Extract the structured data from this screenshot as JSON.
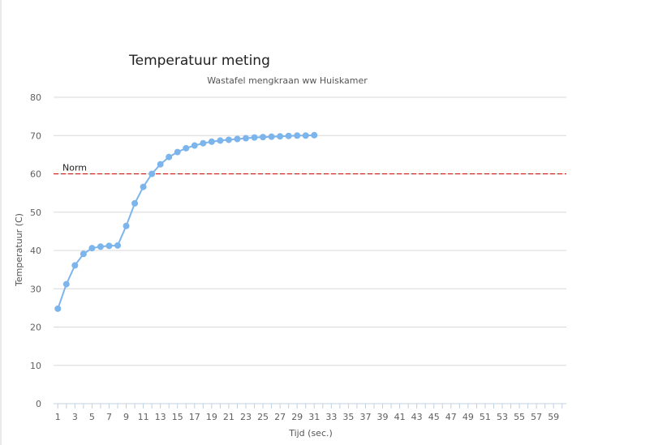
{
  "chart_data": {
    "type": "line",
    "title": "Temperatuur meting",
    "subtitle": "Wastafel mengkraan ww Huiskamer",
    "xlabel": "Tijd (sec.)",
    "ylabel": "Temperatuur (C)",
    "ylim": [
      0,
      80
    ],
    "yticks": [
      0,
      10,
      20,
      30,
      40,
      50,
      60,
      70,
      80
    ],
    "xlim": [
      1,
      60
    ],
    "xticks": [
      1,
      3,
      5,
      7,
      9,
      11,
      13,
      15,
      17,
      19,
      21,
      23,
      25,
      27,
      29,
      31,
      33,
      35,
      37,
      39,
      41,
      43,
      45,
      47,
      49,
      51,
      53,
      55,
      57,
      59
    ],
    "grid": true,
    "series": [
      {
        "name": "",
        "color": "#7cb5ec",
        "x": [
          1,
          2,
          3,
          4,
          5,
          6,
          7,
          8,
          9,
          10,
          11,
          12,
          13,
          14,
          15,
          16,
          17,
          18,
          19,
          20,
          21,
          22,
          23,
          24,
          25,
          26,
          27,
          28,
          29,
          30,
          31
        ],
        "values": [
          24.8,
          31.2,
          36.1,
          39.1,
          40.6,
          41.0,
          41.2,
          41.3,
          46.4,
          52.3,
          56.6,
          60.0,
          62.5,
          64.4,
          65.7,
          66.7,
          67.4,
          68.0,
          68.4,
          68.7,
          68.9,
          69.1,
          69.3,
          69.5,
          69.6,
          69.7,
          69.8,
          69.9,
          70.0,
          70.0,
          70.1
        ]
      }
    ],
    "plot_lines": [
      {
        "label": "Norm",
        "value": 60,
        "color": "#cc0000",
        "style": "dashed"
      }
    ]
  }
}
